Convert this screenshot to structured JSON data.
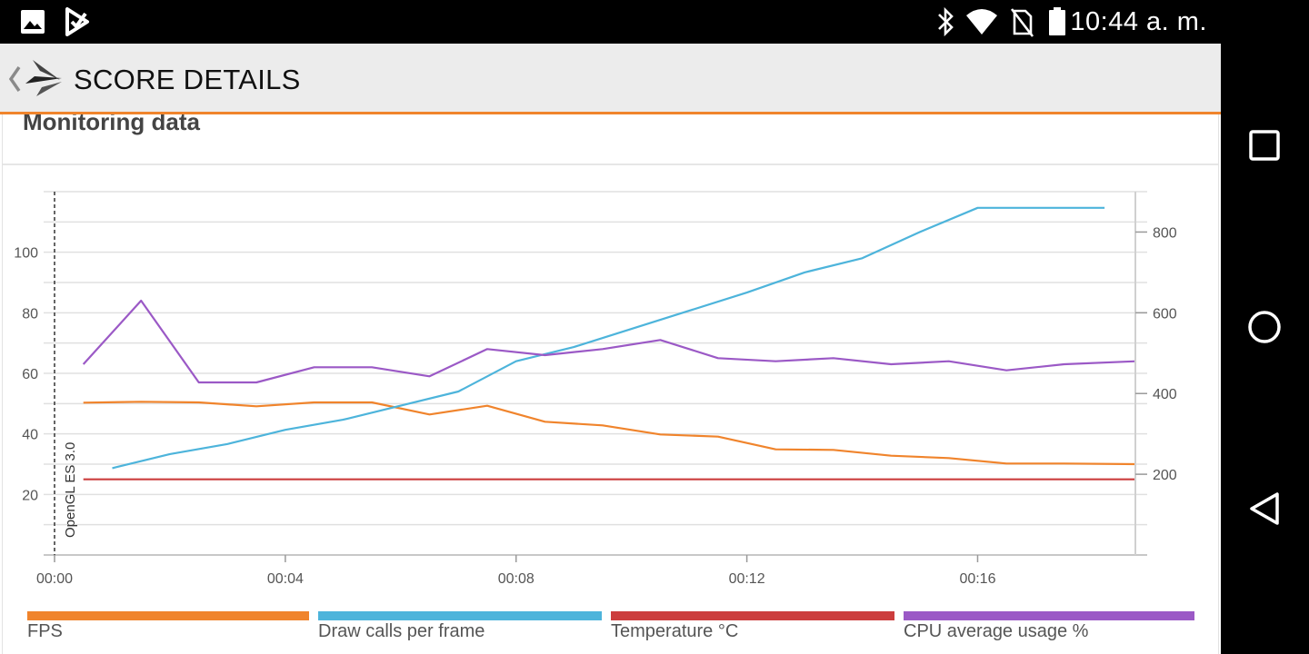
{
  "status_bar": {
    "time": "10:44 a. m.",
    "left_icons": [
      "image-icon",
      "check-flag-icon"
    ],
    "right_icons": [
      "bluetooth-icon",
      "wifi-icon",
      "no-sim-icon",
      "battery-icon"
    ]
  },
  "toolbar": {
    "title": "SCORE DETAILS",
    "back_icon": "chevron-left-icon",
    "logo_icon": "3dmark-logo-icon"
  },
  "section": {
    "title": "Monitoring data"
  },
  "chart_data": {
    "type": "line",
    "annotation": "OpenGL ES 3.0",
    "x_tick_labels": [
      "00:00",
      "00:04",
      "00:08",
      "00:12",
      "00:16"
    ],
    "left_axis": {
      "ticks": [
        20,
        40,
        60,
        80,
        100
      ],
      "range": [
        0,
        120
      ]
    },
    "right_axis": {
      "ticks": [
        200,
        400,
        600,
        800
      ],
      "range": [
        0,
        900
      ]
    },
    "grid": true,
    "x_range_seconds": [
      0,
      18.75
    ],
    "series": [
      {
        "name": "FPS",
        "color": "#f0842c",
        "axis": "left",
        "x": [
          0.5,
          1.5,
          2.5,
          3.5,
          4.5,
          5.5,
          6.5,
          7.5,
          8.5,
          9.5,
          10.5,
          11.5,
          12.5,
          13.5,
          14.5,
          15.5,
          16.5,
          17.5,
          18.75
        ],
        "y": [
          50.3,
          50.6,
          50.4,
          49.1,
          50.4,
          50.4,
          46.4,
          49.3,
          44,
          42.8,
          39.8,
          39.1,
          34.9,
          34.7,
          32.8,
          32,
          30.2,
          30.2,
          30
        ]
      },
      {
        "name": "Draw calls per frame",
        "color": "#4db4db",
        "axis": "right",
        "x": [
          1,
          2,
          3,
          4,
          5,
          6,
          7,
          8,
          9,
          10,
          11,
          12,
          13,
          14,
          15,
          16,
          17,
          18.2
        ],
        "y": [
          215,
          250,
          275,
          310,
          335,
          370,
          405,
          480,
          515,
          560,
          605,
          650,
          700,
          735,
          800,
          860,
          860,
          860
        ]
      },
      {
        "name": "Temperature °C",
        "color": "#cc3d3d",
        "axis": "left",
        "x": [
          0.5,
          18.75
        ],
        "y": [
          25,
          25
        ]
      },
      {
        "name": "CPU average usage %",
        "color": "#9b59c6",
        "axis": "left",
        "x": [
          0.5,
          1.5,
          2.5,
          3.5,
          4.5,
          5.5,
          6.5,
          7.5,
          8.5,
          9.5,
          10.5,
          11.5,
          12.5,
          13.5,
          14.5,
          15.5,
          16.5,
          17.5,
          18.75
        ],
        "y": [
          63,
          84,
          57,
          57,
          62,
          62,
          59,
          68,
          66,
          68,
          71,
          65,
          64,
          65,
          63,
          64,
          61,
          63,
          64
        ]
      }
    ]
  },
  "legend": [
    {
      "label": "FPS",
      "color": "#f0842c"
    },
    {
      "label": "Draw calls per frame",
      "color": "#4db4db"
    },
    {
      "label": "Temperature °C",
      "color": "#cc3d3d"
    },
    {
      "label": "CPU average usage %",
      "color": "#9b59c6"
    }
  ],
  "nav_bar": {
    "buttons": [
      "recents-square-icon",
      "home-circle-icon",
      "back-triangle-icon"
    ]
  }
}
